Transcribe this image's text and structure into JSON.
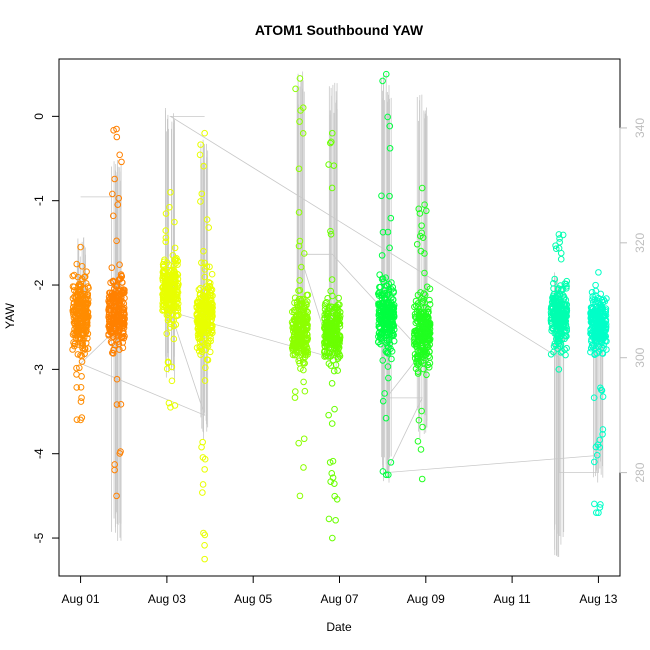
{
  "chart_data": {
    "type": "scatter",
    "title": "ATOM1 Southbound YAW",
    "xlabel": "Date",
    "ylabel": "YAW",
    "x_ticks": [
      "Aug 01",
      "Aug 03",
      "Aug 05",
      "Aug 07",
      "Aug 09",
      "Aug 11",
      "Aug 13"
    ],
    "y_ticks": [
      0,
      -1,
      -2,
      -3,
      -4,
      -5
    ],
    "y2_ticks": [
      340,
      320,
      300,
      280
    ],
    "xlim": [
      "2012-07-31T12:00",
      "2012-08-13T12:00"
    ],
    "ylim": [
      -5.45,
      0.68
    ],
    "y2lim": [
      262,
      352
    ],
    "grid": false,
    "legend": "none",
    "colors": {
      "axis": "#000000",
      "secondary_axis": "#bebebe",
      "heading_line": "#c8c8c8"
    },
    "series": [
      {
        "date": "2012-08-01T00:00",
        "yaw_center": -2.35,
        "yaw_spread": 0.22,
        "yaw_min": -3.6,
        "yaw_max": -1.55,
        "heading_low": 302,
        "heading_high": 322,
        "color": "#ff8c00"
      },
      {
        "date": "2012-08-01T20:00",
        "yaw_center": -2.35,
        "yaw_spread": 0.2,
        "yaw_min": -4.5,
        "yaw_max": -0.15,
        "heading_low": 268,
        "heading_high": 335,
        "color": "#ff8000"
      },
      {
        "date": "2012-08-03T02:00",
        "yaw_center": -2.05,
        "yaw_spread": 0.18,
        "yaw_min": -3.45,
        "yaw_max": -0.9,
        "heading_low": 296,
        "heading_high": 345,
        "color": "#e8ff00"
      },
      {
        "date": "2012-08-03T21:00",
        "yaw_center": -2.35,
        "yaw_spread": 0.2,
        "yaw_min": -5.25,
        "yaw_max": -0.2,
        "heading_low": 285,
        "heading_high": 338,
        "color": "#e8ff00"
      },
      {
        "date": "2012-08-06T02:00",
        "yaw_center": -2.55,
        "yaw_spread": 0.2,
        "yaw_min": -4.5,
        "yaw_max": 0.45,
        "heading_low": 300,
        "heading_high": 350,
        "color": "#8cff00"
      },
      {
        "date": "2012-08-06T20:00",
        "yaw_center": -2.55,
        "yaw_spread": 0.18,
        "yaw_min": -5.0,
        "yaw_max": -0.2,
        "heading_low": 298,
        "heading_high": 348,
        "color": "#6aff00"
      },
      {
        "date": "2012-08-08T02:00",
        "yaw_center": -2.35,
        "yaw_spread": 0.2,
        "yaw_min": -4.25,
        "yaw_max": 0.5,
        "heading_low": 278,
        "heading_high": 350,
        "color": "#00ff40"
      },
      {
        "date": "2012-08-08T22:00",
        "yaw_center": -2.55,
        "yaw_spread": 0.2,
        "yaw_min": -4.3,
        "yaw_max": -0.85,
        "heading_low": 285,
        "heading_high": 346,
        "color": "#20ff20"
      },
      {
        "date": "2012-08-12T02:00",
        "yaw_center": -2.35,
        "yaw_spread": 0.18,
        "yaw_min": -3.0,
        "yaw_max": -1.4,
        "heading_low": 265,
        "heading_high": 315,
        "color": "#00ffb0"
      },
      {
        "date": "2012-08-13T00:00",
        "yaw_center": -2.45,
        "yaw_spread": 0.16,
        "yaw_min": -4.7,
        "yaw_max": -1.85,
        "heading_low": 278,
        "heading_high": 310,
        "color": "#00ffc8"
      }
    ],
    "heading_path": [
      [
        "2012-08-01T00:00",
        328
      ],
      [
        "2012-08-01T20:00",
        328
      ],
      [
        "2012-08-01T20:00",
        305
      ],
      [
        "2012-08-01T00:00",
        299
      ],
      [
        "2012-08-03T21:00",
        290
      ],
      [
        "2012-08-03T02:00",
        308
      ],
      [
        "2012-08-06T20:00",
        300
      ],
      [
        "2012-08-06T02:00",
        318
      ],
      [
        "2012-08-06T20:00",
        318
      ],
      [
        "2012-08-08T22:00",
        301
      ],
      [
        "2012-08-08T02:00",
        293
      ],
      [
        "2012-08-08T22:00",
        293
      ],
      [
        "2012-08-08T02:00",
        280
      ],
      [
        "2012-08-13T00:00",
        283
      ],
      [
        "2012-08-13T00:00",
        280
      ],
      [
        "2012-08-12T02:00",
        280
      ],
      [
        "2012-08-12T02:00",
        300
      ],
      [
        "2012-08-03T02:00",
        342
      ],
      [
        "2012-08-03T21:00",
        342
      ]
    ]
  }
}
